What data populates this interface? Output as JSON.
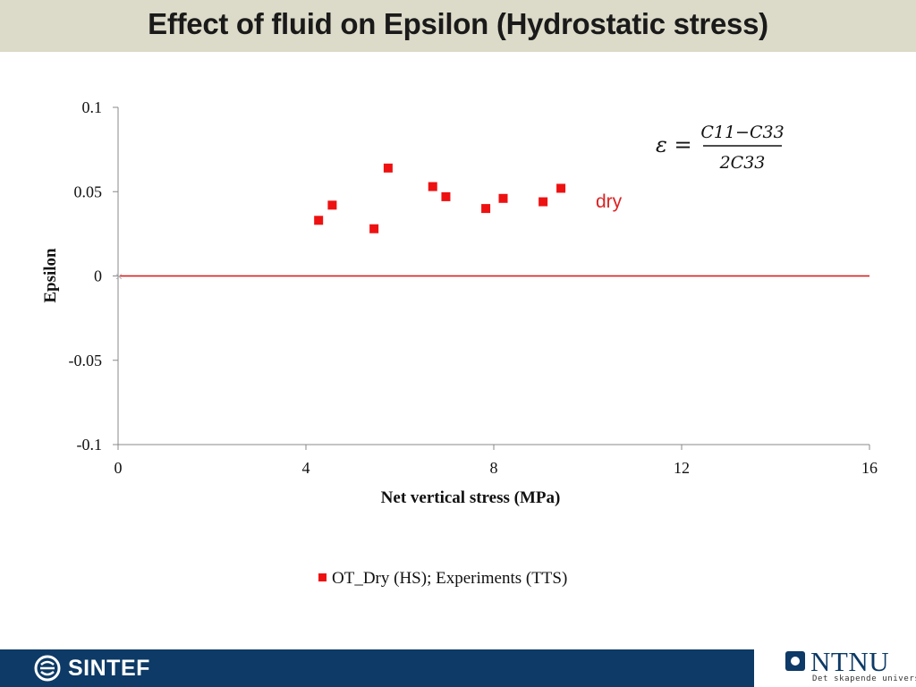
{
  "header": {
    "title": "Effect of fluid on Epsilon (Hydrostatic stress)"
  },
  "footer": {
    "left_logo": "SINTEF",
    "right_logo": "NTNU",
    "right_logo_sub": "Det skapende universitet"
  },
  "colors": {
    "title_bar": "#dcdac8",
    "series": "#ee1111",
    "zero_line": "#dd1111",
    "footer": "#0d3a66",
    "annotation": "#dd2222"
  },
  "chart_data": {
    "type": "scatter",
    "title": "",
    "xlabel": "Net vertical stress (MPa)",
    "ylabel": "Epsilon",
    "xlim": [
      0,
      16
    ],
    "ylim": [
      -0.1,
      0.1
    ],
    "x_ticks": [
      0,
      4,
      8,
      12,
      16
    ],
    "x_tick_labels": [
      "0",
      "4",
      "8",
      "12",
      "16"
    ],
    "y_ticks": [
      0.1,
      0.05,
      0,
      -0.05,
      -0.1
    ],
    "y_tick_labels": [
      "0.1",
      "0.05",
      "0",
      "-0.05",
      "-0.1"
    ],
    "grid": false,
    "legend_position": "bottom",
    "series": [
      {
        "name": "OT_Dry (HS); Experiments (TTS)",
        "marker": "square",
        "x": [
          4.27,
          4.56,
          5.45,
          5.75,
          6.7,
          6.98,
          7.83,
          8.2,
          9.05,
          9.43
        ],
        "y": [
          0.033,
          0.042,
          0.028,
          0.064,
          0.053,
          0.047,
          0.04,
          0.046,
          0.044,
          0.052
        ]
      }
    ],
    "reference_line": {
      "y": 0
    },
    "annotations": {
      "label": "dry",
      "formula_lhs": "ε =",
      "formula_numerator": "C11−C33",
      "formula_denominator": "2C33"
    }
  }
}
